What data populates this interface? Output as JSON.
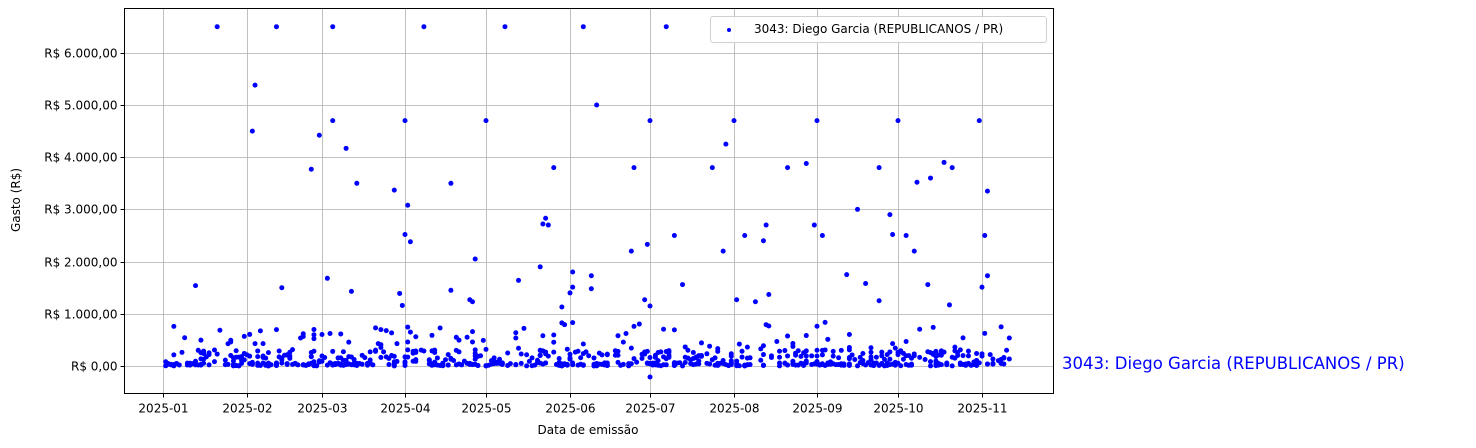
{
  "chart_data": {
    "type": "scatter",
    "title": "",
    "xlabel": "Data de emissão",
    "ylabel": "Gasto (R$)",
    "x_ticks": [
      "2025-01",
      "2025-02",
      "2025-03",
      "2025-04",
      "2025-05",
      "2025-06",
      "2025-07",
      "2025-08",
      "2025-09",
      "2025-10",
      "2025-11"
    ],
    "y_ticks": [
      "R$ 0,00",
      "R$ 1.000,00",
      "R$ 2.000,00",
      "R$ 3.000,00",
      "R$ 4.000,00",
      "R$ 5.000,00",
      "R$ 6.000,00"
    ],
    "y_tick_values": [
      0,
      1000,
      2000,
      3000,
      4000,
      5000,
      6000
    ],
    "ylim": [
      -550,
      6850
    ],
    "xlim": [
      "2024-12-17",
      "2025-11-28"
    ],
    "grid": true,
    "legend_position": "upper right",
    "series": [
      {
        "name": "3043: Diego Garcia (REPUBLICANOS / PR)",
        "color": "#0000ff",
        "marker_size": 2.5,
        "outliers": [
          [
            "2025-01-21",
            6500
          ],
          [
            "2025-02-12",
            6500
          ],
          [
            "2025-03-05",
            6500
          ],
          [
            "2025-04-08",
            6500
          ],
          [
            "2025-05-08",
            6500
          ],
          [
            "2025-06-06",
            6500
          ],
          [
            "2025-07-07",
            6500
          ],
          [
            "2025-02-04",
            5380
          ],
          [
            "2025-02-03",
            4500
          ],
          [
            "2025-02-28",
            4420
          ],
          [
            "2025-03-05",
            4700
          ],
          [
            "2025-03-10",
            4170
          ],
          [
            "2025-02-25",
            3770
          ],
          [
            "2025-03-14",
            3500
          ],
          [
            "2025-03-28",
            3370
          ],
          [
            "2025-04-01",
            4700
          ],
          [
            "2025-04-18",
            3500
          ],
          [
            "2025-04-02",
            3080
          ],
          [
            "2025-04-03",
            2380
          ],
          [
            "2025-04-01",
            2520
          ],
          [
            "2025-05-01",
            4700
          ],
          [
            "2025-06-11",
            5000
          ],
          [
            "2025-05-26",
            3800
          ],
          [
            "2025-06-25",
            3800
          ],
          [
            "2025-07-01",
            4700
          ],
          [
            "2025-07-24",
            3800
          ],
          [
            "2025-07-29",
            4250
          ],
          [
            "2025-08-01",
            4700
          ],
          [
            "2025-08-21",
            3800
          ],
          [
            "2025-08-28",
            3880
          ],
          [
            "2025-09-01",
            4700
          ],
          [
            "2025-09-24",
            3800
          ],
          [
            "2025-10-01",
            4700
          ],
          [
            "2025-10-08",
            3520
          ],
          [
            "2025-10-13",
            3600
          ],
          [
            "2025-10-18",
            3900
          ],
          [
            "2025-10-21",
            3800
          ],
          [
            "2025-10-31",
            4700
          ],
          [
            "2025-11-03",
            3350
          ],
          [
            "2025-01-13",
            1540
          ],
          [
            "2025-02-14",
            1500
          ],
          [
            "2025-03-03",
            1680
          ],
          [
            "2025-03-12",
            1430
          ],
          [
            "2025-03-30",
            1390
          ],
          [
            "2025-03-31",
            1160
          ],
          [
            "2025-04-18",
            1450
          ],
          [
            "2025-04-25",
            1270
          ],
          [
            "2025-04-26",
            1230
          ],
          [
            "2025-04-27",
            2050
          ],
          [
            "2025-05-13",
            1640
          ],
          [
            "2025-05-21",
            1900
          ],
          [
            "2025-05-22",
            2720
          ],
          [
            "2025-05-23",
            2830
          ],
          [
            "2025-05-24",
            2700
          ],
          [
            "2025-05-29",
            1130
          ],
          [
            "2025-06-01",
            1400
          ],
          [
            "2025-06-02",
            1510
          ],
          [
            "2025-06-02",
            1800
          ],
          [
            "2025-06-09",
            1480
          ],
          [
            "2025-06-09",
            1730
          ],
          [
            "2025-06-24",
            2200
          ],
          [
            "2025-06-29",
            1270
          ],
          [
            "2025-06-30",
            2330
          ],
          [
            "2025-07-01",
            1150
          ],
          [
            "2025-07-10",
            2500
          ],
          [
            "2025-07-13",
            1560
          ],
          [
            "2025-07-28",
            2200
          ],
          [
            "2025-08-02",
            1270
          ],
          [
            "2025-08-05",
            2500
          ],
          [
            "2025-08-09",
            1230
          ],
          [
            "2025-08-12",
            2400
          ],
          [
            "2025-08-13",
            2700
          ],
          [
            "2025-08-14",
            1370
          ],
          [
            "2025-08-31",
            2700
          ],
          [
            "2025-09-03",
            2500
          ],
          [
            "2025-09-12",
            1750
          ],
          [
            "2025-09-16",
            3000
          ],
          [
            "2025-09-19",
            1580
          ],
          [
            "2025-09-24",
            1250
          ],
          [
            "2025-09-28",
            2900
          ],
          [
            "2025-09-29",
            2520
          ],
          [
            "2025-10-04",
            2500
          ],
          [
            "2025-10-07",
            2200
          ],
          [
            "2025-10-12",
            1560
          ],
          [
            "2025-10-20",
            1170
          ],
          [
            "2025-11-01",
            1510
          ],
          [
            "2025-11-02",
            2500
          ],
          [
            "2025-11-03",
            1730
          ],
          [
            "2025-07-01",
            -210
          ]
        ],
        "note": "Plus ~700 points clustered between R$ 0 and R$ 900 across all months"
      }
    ],
    "annotation": "3043: Diego Garcia (REPUBLICANOS / PR)"
  },
  "legend": {
    "label": "3043: Diego Garcia (REPUBLICANOS / PR)"
  },
  "side_label": "3043: Diego Garcia (REPUBLICANOS / PR)"
}
